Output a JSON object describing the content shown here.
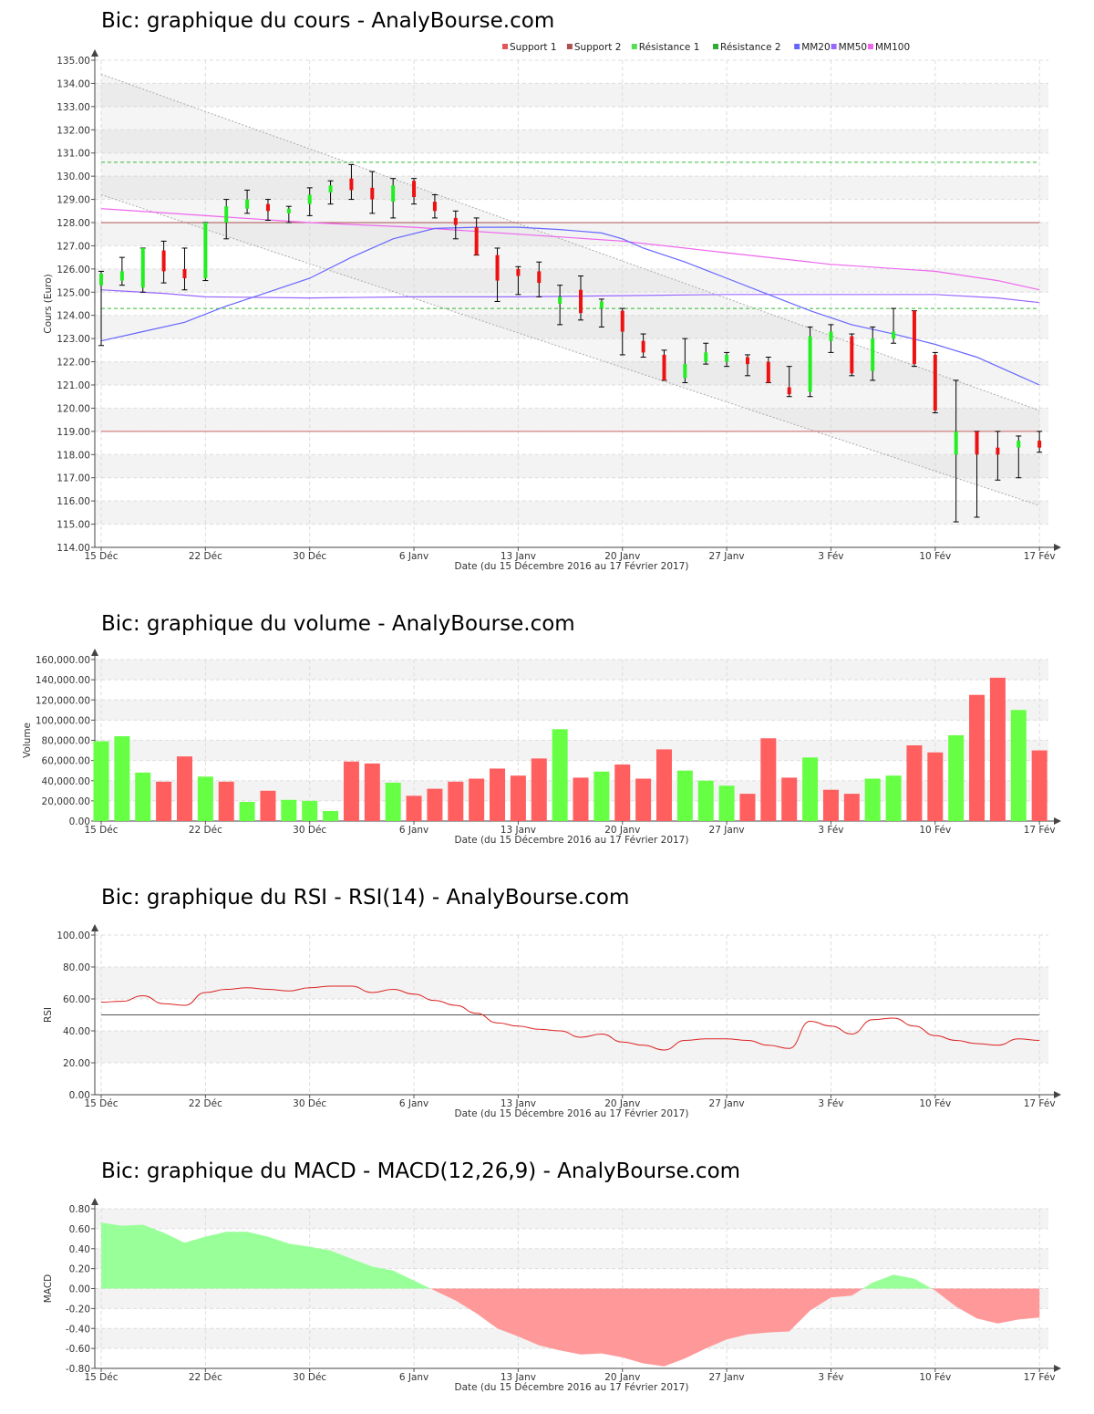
{
  "chart_data": [
    {
      "type": "candlestick",
      "title": "Bic: graphique du cours - AnalyBourse.com",
      "xlabel": "Date (du 15 Décembre 2016 au 17 Février 2017)",
      "ylabel": "Cours (Euro)",
      "ylim": [
        114,
        135
      ],
      "grid": true,
      "legend_position": "top-right",
      "x_ticks": [
        "15 Déc",
        "22 Déc",
        "30 Déc",
        "6 Janv",
        "13 Janv",
        "20 Janv",
        "27 Janv",
        "3 Fév",
        "10 Fév",
        "17 Fév"
      ],
      "x_tick_index": [
        0,
        5,
        10,
        15,
        20,
        25,
        30,
        35,
        40,
        45
      ],
      "y_ticks": [
        "114.00",
        "115.00",
        "116.00",
        "117.00",
        "118.00",
        "119.00",
        "120.00",
        "121.00",
        "122.00",
        "123.00",
        "124.00",
        "125.00",
        "126.00",
        "127.00",
        "128.00",
        "129.00",
        "130.00",
        "131.00",
        "132.00",
        "133.00",
        "134.00",
        "135.00"
      ],
      "legend": [
        {
          "name": "Support 1",
          "color": "#e05555"
        },
        {
          "name": "Support 2",
          "color": "#b05050"
        },
        {
          "name": "Résistance 1",
          "color": "#55dd55"
        },
        {
          "name": "Résistance 2",
          "color": "#33aa33"
        },
        {
          "name": "MM20",
          "color": "#6666ff"
        },
        {
          "name": "MM50",
          "color": "#9966ff"
        },
        {
          "name": "MM100",
          "color": "#ee66ee"
        }
      ],
      "ohlc": [
        [
          125.3,
          125.9,
          122.7,
          125.8
        ],
        [
          125.5,
          126.5,
          125.3,
          125.9
        ],
        [
          125.2,
          126.9,
          125.0,
          126.9
        ],
        [
          126.8,
          127.2,
          125.4,
          125.9
        ],
        [
          126.0,
          126.9,
          125.1,
          125.6
        ],
        [
          125.6,
          128.0,
          125.5,
          128.0
        ],
        [
          128.0,
          129.0,
          127.3,
          128.7
        ],
        [
          128.6,
          129.4,
          128.4,
          129.0
        ],
        [
          128.8,
          129.0,
          128.1,
          128.5
        ],
        [
          128.4,
          128.7,
          128.0,
          128.6
        ],
        [
          128.8,
          129.5,
          128.3,
          129.2
        ],
        [
          129.3,
          129.8,
          128.8,
          129.6
        ],
        [
          129.9,
          130.5,
          129.0,
          129.4
        ],
        [
          129.5,
          130.2,
          128.4,
          129.0
        ],
        [
          128.9,
          129.9,
          128.2,
          129.6
        ],
        [
          129.8,
          129.9,
          128.8,
          129.1
        ],
        [
          128.9,
          129.2,
          128.2,
          128.5
        ],
        [
          128.2,
          128.5,
          127.3,
          127.9
        ],
        [
          127.8,
          128.2,
          126.6,
          126.6
        ],
        [
          126.6,
          126.9,
          124.6,
          125.5
        ],
        [
          126.0,
          126.1,
          124.9,
          125.7
        ],
        [
          125.9,
          126.3,
          124.8,
          125.4
        ],
        [
          124.5,
          125.3,
          123.6,
          124.8
        ],
        [
          125.1,
          125.7,
          123.8,
          124.1
        ],
        [
          124.3,
          124.7,
          123.5,
          124.6
        ],
        [
          124.2,
          124.3,
          122.3,
          123.3
        ],
        [
          122.9,
          123.2,
          122.2,
          122.4
        ],
        [
          122.3,
          122.5,
          121.2,
          121.2
        ],
        [
          121.3,
          123.0,
          121.1,
          121.9
        ],
        [
          122.0,
          122.8,
          121.9,
          122.4
        ],
        [
          122.0,
          122.4,
          121.8,
          122.3
        ],
        [
          122.2,
          122.3,
          121.4,
          121.9
        ],
        [
          122.0,
          122.2,
          121.1,
          121.1
        ],
        [
          120.9,
          121.8,
          120.5,
          120.6
        ],
        [
          120.7,
          123.5,
          120.5,
          123.1
        ],
        [
          122.9,
          123.6,
          122.4,
          123.3
        ],
        [
          123.1,
          123.2,
          121.4,
          121.5
        ],
        [
          121.6,
          123.5,
          121.2,
          123.0
        ],
        [
          123.0,
          124.3,
          122.8,
          123.3
        ],
        [
          124.2,
          124.2,
          121.8,
          121.9
        ],
        [
          122.3,
          122.4,
          119.8,
          119.9
        ],
        [
          118.0,
          121.2,
          115.1,
          119.0
        ],
        [
          119.0,
          119.0,
          115.3,
          118.0
        ],
        [
          118.3,
          119.0,
          116.9,
          118.0
        ],
        [
          118.3,
          118.8,
          117.0,
          118.6
        ],
        [
          118.6,
          119.0,
          118.1,
          118.3
        ]
      ],
      "mm20": [
        [
          0,
          122.9
        ],
        [
          2,
          123.3
        ],
        [
          4,
          123.7
        ],
        [
          6,
          124.4
        ],
        [
          8,
          125.0
        ],
        [
          10,
          125.6
        ],
        [
          12,
          126.5
        ],
        [
          14,
          127.3
        ],
        [
          16,
          127.75
        ],
        [
          18,
          127.8
        ],
        [
          20,
          127.8
        ],
        [
          22,
          127.7
        ],
        [
          24,
          127.55
        ],
        [
          25,
          127.3
        ],
        [
          26,
          126.9
        ],
        [
          28,
          126.3
        ],
        [
          30,
          125.6
        ],
        [
          32,
          124.9
        ],
        [
          34,
          124.2
        ],
        [
          36,
          123.6
        ],
        [
          38,
          123.2
        ],
        [
          40,
          122.75
        ],
        [
          42,
          122.2
        ],
        [
          44,
          121.4
        ],
        [
          45,
          121.0
        ]
      ],
      "mm50": [
        [
          0,
          125.1
        ],
        [
          3,
          124.95
        ],
        [
          5,
          124.8
        ],
        [
          10,
          124.75
        ],
        [
          15,
          124.8
        ],
        [
          20,
          124.8
        ],
        [
          25,
          124.85
        ],
        [
          30,
          124.9
        ],
        [
          35,
          124.9
        ],
        [
          40,
          124.9
        ],
        [
          43,
          124.75
        ],
        [
          45,
          124.55
        ]
      ],
      "mm100": [
        [
          0,
          128.6
        ],
        [
          5,
          128.3
        ],
        [
          10,
          128.0
        ],
        [
          15,
          127.8
        ],
        [
          20,
          127.5
        ],
        [
          25,
          127.2
        ],
        [
          30,
          126.7
        ],
        [
          35,
          126.2
        ],
        [
          40,
          125.9
        ],
        [
          43,
          125.5
        ],
        [
          45,
          125.1
        ]
      ],
      "support1": 119.0,
      "support2": 128.0,
      "resistance1": 124.3,
      "resistance2": 130.6,
      "trend_channel": {
        "upper": [
          [
            0,
            134.4
          ],
          [
            45,
            119.9
          ]
        ],
        "lower": [
          [
            0,
            129.2
          ],
          [
            45,
            115.8
          ]
        ]
      }
    },
    {
      "type": "bar",
      "title": "Bic: graphique du volume - AnalyBourse.com",
      "xlabel": "Date (du 15 Décembre 2016 au 17 Février 2017)",
      "ylabel": "Volume",
      "ylim": [
        0,
        160000
      ],
      "grid": true,
      "x_ticks": [
        "15 Déc",
        "22 Déc",
        "30 Déc",
        "6 Janv",
        "13 Janv",
        "20 Janv",
        "27 Janv",
        "3 Fév",
        "10 Fév",
        "17 Fév"
      ],
      "x_tick_index": [
        0,
        5,
        10,
        15,
        20,
        25,
        30,
        35,
        40,
        45
      ],
      "y_ticks": [
        "0.00",
        "20,000.00",
        "40,000.00",
        "60,000.00",
        "80,000.00",
        "100,000.00",
        "120,000.00",
        "140,000.00",
        "160,000.00"
      ],
      "values": [
        79000,
        84000,
        48000,
        39000,
        64000,
        44000,
        39000,
        19000,
        30000,
        21000,
        20000,
        10000,
        59000,
        57000,
        38000,
        25000,
        32000,
        39000,
        42000,
        52000,
        45000,
        62000,
        91000,
        43000,
        49000,
        56000,
        42000,
        71000,
        50000,
        40000,
        35000,
        27000,
        82000,
        43000,
        63000,
        31000,
        27000,
        42000,
        45000,
        75000,
        68000,
        85000,
        125000,
        142000,
        110000,
        70000
      ],
      "colors": [
        "#66ff44",
        "#66ff44",
        "#66ff44",
        "#ff5f5f",
        "#ff5f5f",
        "#66ff44",
        "#ff5f5f",
        "#66ff44",
        "#ff5f5f",
        "#66ff44",
        "#66ff44",
        "#66ff44",
        "#ff5f5f",
        "#ff5f5f",
        "#66ff44",
        "#ff5f5f",
        "#ff5f5f",
        "#ff5f5f",
        "#ff5f5f",
        "#ff5f5f",
        "#ff5f5f",
        "#ff5f5f",
        "#66ff44",
        "#ff5f5f",
        "#66ff44",
        "#ff5f5f",
        "#ff5f5f",
        "#ff5f5f",
        "#66ff44",
        "#66ff44",
        "#66ff44",
        "#ff5f5f",
        "#ff5f5f",
        "#ff5f5f",
        "#66ff44",
        "#ff5f5f",
        "#ff5f5f",
        "#66ff44",
        "#66ff44",
        "#ff5f5f",
        "#ff5f5f",
        "#66ff44",
        "#ff5f5f",
        "#ff5f5f",
        "#66ff44",
        "#ff5f5f"
      ]
    },
    {
      "type": "line",
      "title": "Bic: graphique du RSI - RSI(14) - AnalyBourse.com",
      "xlabel": "Date (du 15 Décembre 2016 au 17 Février 2017)",
      "ylabel": "RSI",
      "ylim": [
        0,
        100
      ],
      "grid": true,
      "x_ticks": [
        "15 Déc",
        "22 Déc",
        "30 Déc",
        "6 Janv",
        "13 Janv",
        "20 Janv",
        "27 Janv",
        "3 Fév",
        "10 Fév",
        "17 Fév"
      ],
      "x_tick_index": [
        0,
        5,
        10,
        15,
        20,
        25,
        30,
        35,
        40,
        45
      ],
      "y_ticks": [
        "0.00",
        "20.00",
        "40.00",
        "60.00",
        "80.00",
        "100.00"
      ],
      "reference_line": 50,
      "values": [
        58,
        58.5,
        62,
        57,
        56,
        64,
        66,
        67,
        66,
        65,
        67,
        68,
        68,
        64,
        66,
        63,
        59,
        56,
        51,
        45,
        43,
        41,
        40,
        36,
        38,
        33,
        31,
        28,
        34,
        35,
        35,
        34,
        31,
        29,
        46,
        43,
        38,
        47,
        48,
        43,
        37,
        34,
        32,
        31,
        35,
        34
      ]
    },
    {
      "type": "area",
      "title": "Bic: graphique du MACD - MACD(12,26,9) - AnalyBourse.com",
      "xlabel": "Date (du 15 Décembre 2016 au 17 Février 2017)",
      "ylabel": "MACD",
      "ylim": [
        -0.8,
        0.8
      ],
      "grid": true,
      "x_ticks": [
        "15 Déc",
        "22 Déc",
        "30 Déc",
        "6 Janv",
        "13 Janv",
        "20 Janv",
        "27 Janv",
        "3 Fév",
        "10 Fév",
        "17 Fév"
      ],
      "x_tick_index": [
        0,
        5,
        10,
        15,
        20,
        25,
        30,
        35,
        40,
        45
      ],
      "y_ticks": [
        "-0.80",
        "-0.60",
        "-0.40",
        "-0.20",
        "0.00",
        "0.20",
        "0.40",
        "0.60",
        "0.80"
      ],
      "positive_color": "#99ff99",
      "negative_color": "#ff9999",
      "values": [
        0.66,
        0.63,
        0.64,
        0.56,
        0.46,
        0.52,
        0.57,
        0.57,
        0.52,
        0.45,
        0.42,
        0.38,
        0.3,
        0.22,
        0.18,
        0.08,
        -0.02,
        -0.12,
        -0.25,
        -0.4,
        -0.48,
        -0.57,
        -0.62,
        -0.66,
        -0.65,
        -0.69,
        -0.75,
        -0.78,
        -0.7,
        -0.6,
        -0.51,
        -0.46,
        -0.44,
        -0.43,
        -0.22,
        -0.09,
        -0.07,
        0.06,
        0.14,
        0.1,
        -0.02,
        -0.18,
        -0.3,
        -0.35,
        -0.31,
        -0.29
      ]
    }
  ]
}
